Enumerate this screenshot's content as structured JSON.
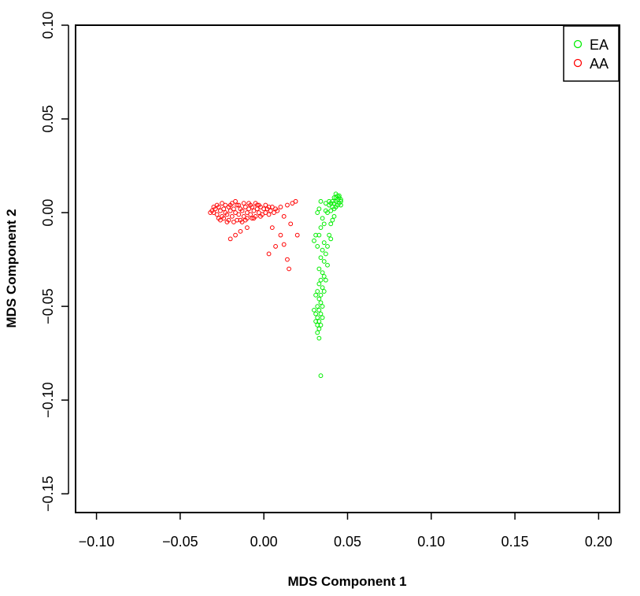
{
  "chart_data": {
    "type": "scatter",
    "xlabel": "MDS Component 1",
    "ylabel": "MDS Component 2",
    "xlim": [
      -0.1125,
      0.2125
    ],
    "ylim": [
      -0.16,
      0.1
    ],
    "x_ticks": [
      -0.1,
      -0.05,
      0.0,
      0.05,
      0.1,
      0.15,
      0.2
    ],
    "x_tick_labels": [
      "−0.10",
      "−0.05",
      "0.00",
      "0.05",
      "0.10",
      "0.15",
      "0.20"
    ],
    "y_ticks": [
      -0.15,
      -0.1,
      -0.05,
      0.0,
      0.05,
      0.1
    ],
    "y_tick_labels": [
      "−0.15",
      "−0.10",
      "−0.05",
      "0.00",
      "0.05",
      "0.10"
    ],
    "grid": false,
    "legend_position": "top-right",
    "series": [
      {
        "name": "EA",
        "color": "#00ee00",
        "points": [
          [
            0.044,
            0.007
          ],
          [
            0.043,
            0.006
          ],
          [
            0.045,
            0.008
          ],
          [
            0.042,
            0.005
          ],
          [
            0.044,
            0.009
          ],
          [
            0.046,
            0.006
          ],
          [
            0.043,
            0.008
          ],
          [
            0.041,
            0.006
          ],
          [
            0.045,
            0.005
          ],
          [
            0.044,
            0.004
          ],
          [
            0.042,
            0.008
          ],
          [
            0.046,
            0.007
          ],
          [
            0.04,
            0.005
          ],
          [
            0.043,
            0.01
          ],
          [
            0.045,
            0.009
          ],
          [
            0.041,
            0.003
          ],
          [
            0.039,
            0.004
          ],
          [
            0.04,
            0.001
          ],
          [
            0.042,
            0.002
          ],
          [
            0.038,
            0.0
          ],
          [
            0.039,
            0.006
          ],
          [
            0.037,
            0.005
          ],
          [
            0.043,
            0.003
          ],
          [
            0.046,
            0.004
          ],
          [
            0.042,
            -0.002
          ],
          [
            0.04,
            -0.006
          ],
          [
            0.041,
            -0.004
          ],
          [
            0.037,
            0.001
          ],
          [
            0.034,
            0.006
          ],
          [
            0.033,
            0.002
          ],
          [
            0.032,
            0.0
          ],
          [
            0.035,
            -0.003
          ],
          [
            0.036,
            -0.006
          ],
          [
            0.034,
            -0.008
          ],
          [
            0.033,
            -0.012
          ],
          [
            0.031,
            -0.012
          ],
          [
            0.03,
            -0.015
          ],
          [
            0.036,
            -0.016
          ],
          [
            0.032,
            -0.018
          ],
          [
            0.035,
            -0.02
          ],
          [
            0.039,
            -0.012
          ],
          [
            0.038,
            -0.018
          ],
          [
            0.04,
            -0.014
          ],
          [
            0.037,
            -0.022
          ],
          [
            0.036,
            -0.026
          ],
          [
            0.038,
            -0.028
          ],
          [
            0.034,
            -0.024
          ],
          [
            0.033,
            -0.03
          ],
          [
            0.035,
            -0.032
          ],
          [
            0.036,
            -0.034
          ],
          [
            0.034,
            -0.036
          ],
          [
            0.037,
            -0.036
          ],
          [
            0.033,
            -0.038
          ],
          [
            0.035,
            -0.04
          ],
          [
            0.032,
            -0.042
          ],
          [
            0.034,
            -0.044
          ],
          [
            0.036,
            -0.042
          ],
          [
            0.033,
            -0.046
          ],
          [
            0.031,
            -0.044
          ],
          [
            0.034,
            -0.048
          ],
          [
            0.032,
            -0.05
          ],
          [
            0.035,
            -0.05
          ],
          [
            0.033,
            -0.052
          ],
          [
            0.031,
            -0.054
          ],
          [
            0.034,
            -0.054
          ],
          [
            0.032,
            -0.056
          ],
          [
            0.035,
            -0.056
          ],
          [
            0.033,
            -0.058
          ],
          [
            0.03,
            -0.052
          ],
          [
            0.031,
            -0.058
          ],
          [
            0.032,
            -0.06
          ],
          [
            0.034,
            -0.06
          ],
          [
            0.033,
            -0.062
          ],
          [
            0.032,
            -0.064
          ],
          [
            0.033,
            -0.067
          ],
          [
            0.034,
            -0.087
          ]
        ]
      },
      {
        "name": "AA",
        "color": "#ff0000",
        "points": [
          [
            -0.03,
            0.0
          ],
          [
            -0.029,
            0.002
          ],
          [
            -0.028,
            -0.001
          ],
          [
            -0.027,
            0.003
          ],
          [
            -0.026,
            0.001
          ],
          [
            -0.025,
            -0.002
          ],
          [
            -0.024,
            0.002
          ],
          [
            -0.023,
            0.0
          ],
          [
            -0.022,
            -0.001
          ],
          [
            -0.021,
            0.003
          ],
          [
            -0.02,
            0.001
          ],
          [
            -0.019,
            -0.002
          ],
          [
            -0.018,
            0.002
          ],
          [
            -0.017,
            0.0
          ],
          [
            -0.016,
            0.004
          ],
          [
            -0.015,
            -0.001
          ],
          [
            -0.014,
            0.002
          ],
          [
            -0.013,
            0.001
          ],
          [
            -0.012,
            -0.002
          ],
          [
            -0.011,
            0.003
          ],
          [
            -0.01,
            0.0
          ],
          [
            -0.009,
            0.002
          ],
          [
            -0.008,
            -0.001
          ],
          [
            -0.007,
            0.003
          ],
          [
            -0.006,
            0.001
          ],
          [
            -0.005,
            -0.002
          ],
          [
            -0.004,
            0.002
          ],
          [
            -0.003,
            0.0
          ],
          [
            -0.002,
            0.003
          ],
          [
            -0.001,
            -0.001
          ],
          [
            0.0,
            0.002
          ],
          [
            0.001,
            0.0
          ],
          [
            0.002,
            0.002
          ],
          [
            0.003,
            -0.001
          ],
          [
            0.004,
            0.001
          ],
          [
            0.005,
            0.003
          ],
          [
            0.006,
            0.0
          ],
          [
            0.007,
            0.002
          ],
          [
            -0.031,
            0.001
          ],
          [
            -0.032,
            0.0
          ],
          [
            -0.028,
            0.004
          ],
          [
            -0.024,
            -0.003
          ],
          [
            -0.02,
            0.004
          ],
          [
            -0.016,
            -0.004
          ],
          [
            -0.012,
            0.005
          ],
          [
            -0.008,
            0.004
          ],
          [
            -0.004,
            0.004
          ],
          [
            -0.026,
            -0.004
          ],
          [
            -0.022,
            -0.005
          ],
          [
            -0.018,
            -0.005
          ],
          [
            -0.014,
            -0.004
          ],
          [
            -0.01,
            -0.003
          ],
          [
            -0.006,
            -0.003
          ],
          [
            -0.002,
            -0.002
          ],
          [
            -0.03,
            0.003
          ],
          [
            -0.027,
            -0.003
          ],
          [
            -0.023,
            0.004
          ],
          [
            -0.019,
            0.005
          ],
          [
            -0.015,
            0.004
          ],
          [
            -0.011,
            -0.004
          ],
          [
            -0.007,
            -0.003
          ],
          [
            -0.003,
            0.004
          ],
          [
            0.001,
            0.004
          ],
          [
            0.003,
            0.003
          ],
          [
            -0.025,
            0.005
          ],
          [
            -0.021,
            -0.004
          ],
          [
            -0.017,
            0.006
          ],
          [
            -0.013,
            -0.005
          ],
          [
            -0.009,
            0.005
          ],
          [
            -0.005,
            0.005
          ],
          [
            0.01,
            0.003
          ],
          [
            0.012,
            -0.002
          ],
          [
            0.014,
            0.004
          ],
          [
            0.019,
            0.006
          ],
          [
            0.017,
            0.005
          ],
          [
            0.008,
            0.001
          ],
          [
            -0.014,
            -0.01
          ],
          [
            -0.02,
            -0.014
          ],
          [
            -0.017,
            -0.012
          ],
          [
            -0.01,
            -0.008
          ],
          [
            0.005,
            -0.008
          ],
          [
            0.01,
            -0.012
          ],
          [
            0.012,
            -0.017
          ],
          [
            0.007,
            -0.018
          ],
          [
            0.003,
            -0.022
          ],
          [
            0.02,
            -0.012
          ],
          [
            0.014,
            -0.025
          ],
          [
            0.015,
            -0.03
          ],
          [
            0.016,
            -0.006
          ]
        ]
      }
    ]
  }
}
